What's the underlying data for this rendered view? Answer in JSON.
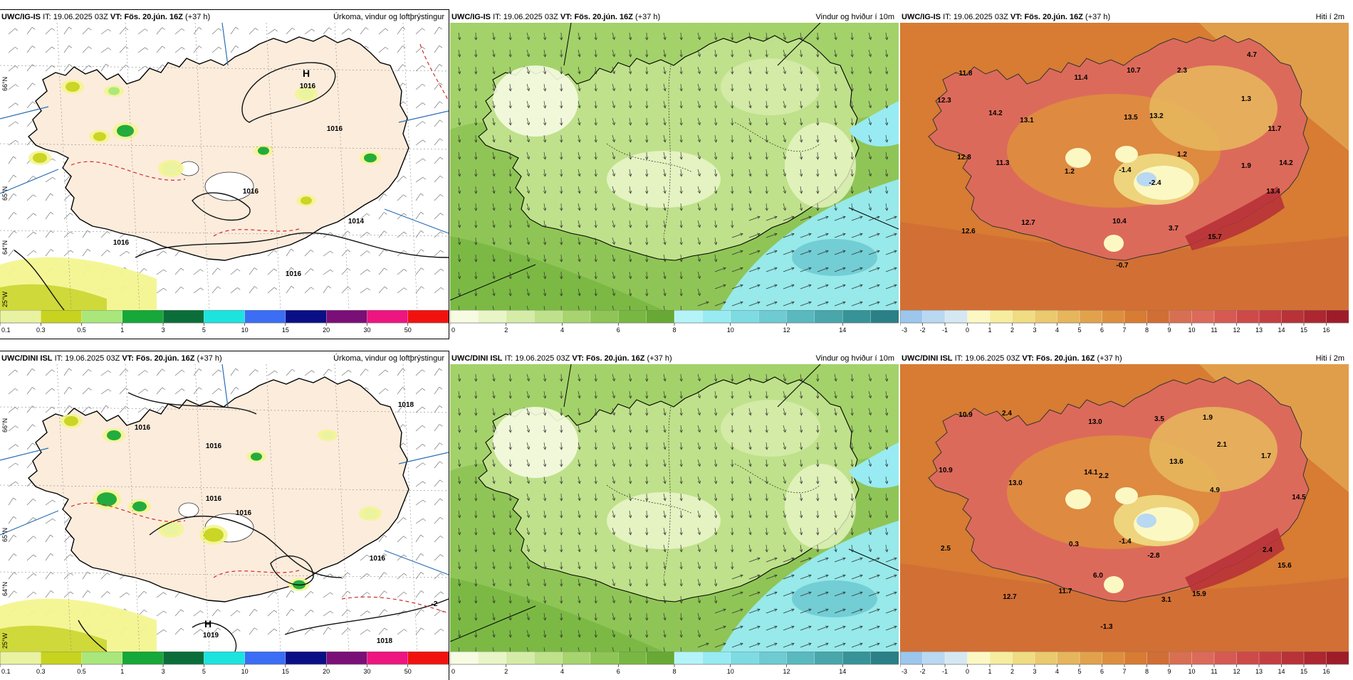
{
  "rows": [
    {
      "model": "UWC/IG-IS",
      "it_label": "IT:",
      "it_value": "19.06.2025 03Z",
      "vt_label": "VT:",
      "vt_value": "Fös. 20.jún. 16Z",
      "lead": "(+37 h)"
    },
    {
      "model": "UWC/DINI ISL",
      "it_label": "IT:",
      "it_value": "19.06.2025 03Z",
      "vt_label": "VT:",
      "vt_value": "Fös. 20.jún. 16Z",
      "lead": "(+37 h)"
    }
  ],
  "panels": {
    "precip": {
      "title": "Úrkoma, vindur og loftþrýstingur"
    },
    "wind": {
      "title": "Vindur og hviður í 10m"
    },
    "temp": {
      "title": "Hiti í 2m"
    }
  },
  "legends": {
    "precip": {
      "ticks": [
        "0.1",
        "0.3",
        "0.5",
        "1",
        "3",
        "5",
        "10",
        "15",
        "20",
        "30",
        "50"
      ],
      "colors": [
        "#e9f2a0",
        "#c7d31f",
        "#a9e77b",
        "#16a838",
        "#0b6e3a",
        "#1de3df",
        "#3b6ef5",
        "#0a0f85",
        "#7a0f77",
        "#ee1580",
        "#f1120f"
      ]
    },
    "wind": {
      "ticks": [
        "0",
        "2",
        "4",
        "6",
        "8",
        "10",
        "12",
        "14"
      ],
      "colors": [
        "#f6fbe2",
        "#e8f5c6",
        "#d5eca8",
        "#bfe18b",
        "#a7d46f",
        "#8fc556",
        "#79b743",
        "#68a935",
        "#b4f4f8",
        "#98ebf2",
        "#7fdbe2",
        "#6ecbd2",
        "#59b9bf",
        "#49a6ab",
        "#379397",
        "#2a8086"
      ]
    },
    "temp": {
      "ticks": [
        "-3",
        "-2",
        "-1",
        "0",
        "1",
        "2",
        "3",
        "4",
        "5",
        "6",
        "7",
        "8",
        "9",
        "10",
        "11",
        "12",
        "13",
        "14",
        "15",
        "16"
      ],
      "colors": [
        "#9cc6ec",
        "#b9d8f1",
        "#d5e8f2",
        "#fcf8c4",
        "#f7ed9f",
        "#f0dc83",
        "#ebc96e",
        "#e6b55c",
        "#e2a24c",
        "#de8f3d",
        "#d77c32",
        "#d16e35",
        "#d86f52",
        "#dc6a5a",
        "#d65a52",
        "#cd4a49",
        "#c33e40",
        "#b83237",
        "#ac272f",
        "#9e1c29"
      ]
    }
  },
  "maps": {
    "row1": {
      "pressure_labels": [
        {
          "text": "H"
        },
        {
          "text": "1016"
        },
        {
          "text": "1016"
        },
        {
          "text": "1016"
        },
        {
          "text": "1014"
        },
        {
          "text": "1016"
        },
        {
          "text": "1016"
        }
      ],
      "lat_labels": [
        "66°N",
        "65°N",
        "64°N",
        "25°W"
      ],
      "temps": [
        "11.8",
        "12.3",
        "14.2",
        "13.1",
        "11.4",
        "10.7",
        "2.3",
        "4.7",
        "13.5",
        "13.2",
        "1.3",
        "11.7",
        "12.8",
        "11.3",
        "1.2",
        "1.2",
        "1.9",
        "14.2",
        "-1.4",
        "-2.4",
        "13.4",
        "12.6",
        "12.7",
        "10.4",
        "3.7",
        "15.7",
        "-0.7"
      ]
    },
    "row2": {
      "pressure_labels": [
        {
          "text": "1016"
        },
        {
          "text": "1016"
        },
        {
          "text": "1016"
        },
        {
          "text": "1016"
        },
        {
          "text": "H"
        },
        {
          "text": "1019"
        },
        {
          "text": "1018"
        },
        {
          "text": "1016"
        },
        {
          "text": "1018"
        },
        {
          "text": "-2"
        }
      ],
      "lat_labels": [
        "66°N",
        "65°N",
        "64°N",
        "25°W"
      ],
      "temps": [
        "10.9",
        "2.4",
        "13.0",
        "3.5",
        "1.9",
        "2.1",
        "13.6",
        "10.9",
        "14.1",
        "2.2",
        "1.7",
        "13.0",
        "4.9",
        "14.5",
        "2.5",
        "0.3",
        "-1.4",
        "-2.8",
        "2.4",
        "15.6",
        "6.0",
        "11.7",
        "12.7",
        "3.1",
        "15.9",
        "-1.3"
      ]
    }
  }
}
